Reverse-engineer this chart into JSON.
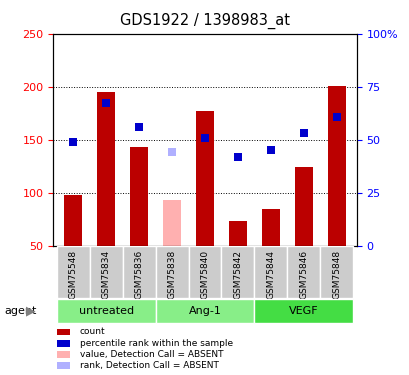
{
  "title": "GDS1922 / 1398983_at",
  "samples": [
    "GSM75548",
    "GSM75834",
    "GSM75836",
    "GSM75838",
    "GSM75840",
    "GSM75842",
    "GSM75844",
    "GSM75846",
    "GSM75848"
  ],
  "bar_values": [
    98,
    195,
    143,
    null,
    177,
    73,
    85,
    124,
    201
  ],
  "bar_absent": [
    null,
    null,
    null,
    93,
    null,
    null,
    null,
    null,
    null
  ],
  "bar_color_present": "#bb0000",
  "bar_color_absent": "#ffb0b0",
  "rank_values": [
    148,
    185,
    162,
    null,
    152,
    134,
    140,
    156,
    171
  ],
  "rank_absent": [
    null,
    null,
    null,
    138,
    null,
    null,
    null,
    null,
    null
  ],
  "rank_color_present": "#0000cc",
  "rank_color_absent": "#b0b0ff",
  "ylim_left": [
    50,
    250
  ],
  "ylim_right": [
    0,
    100
  ],
  "yticks_left": [
    50,
    100,
    150,
    200,
    250
  ],
  "ytick_labels_left": [
    "50",
    "100",
    "150",
    "200",
    "250"
  ],
  "yticks_right": [
    0,
    25,
    50,
    75,
    100
  ],
  "ytick_labels_right": [
    "0",
    "25",
    "50",
    "75",
    "100%"
  ],
  "groups": [
    {
      "label": "untreated",
      "start": 0,
      "end": 2,
      "color": "#88ee88"
    },
    {
      "label": "Ang-1",
      "start": 3,
      "end": 5,
      "color": "#88ee88"
    },
    {
      "label": "VEGF",
      "start": 6,
      "end": 8,
      "color": "#44dd44"
    }
  ],
  "bar_width": 0.55,
  "dot_size": 35,
  "bg_color": "#ffffff",
  "sample_box_color": "#cccccc",
  "legend_items": [
    {
      "label": "count",
      "color": "#bb0000"
    },
    {
      "label": "percentile rank within the sample",
      "color": "#0000cc"
    },
    {
      "label": "value, Detection Call = ABSENT",
      "color": "#ffb0b0"
    },
    {
      "label": "rank, Detection Call = ABSENT",
      "color": "#b0b0ff"
    }
  ]
}
